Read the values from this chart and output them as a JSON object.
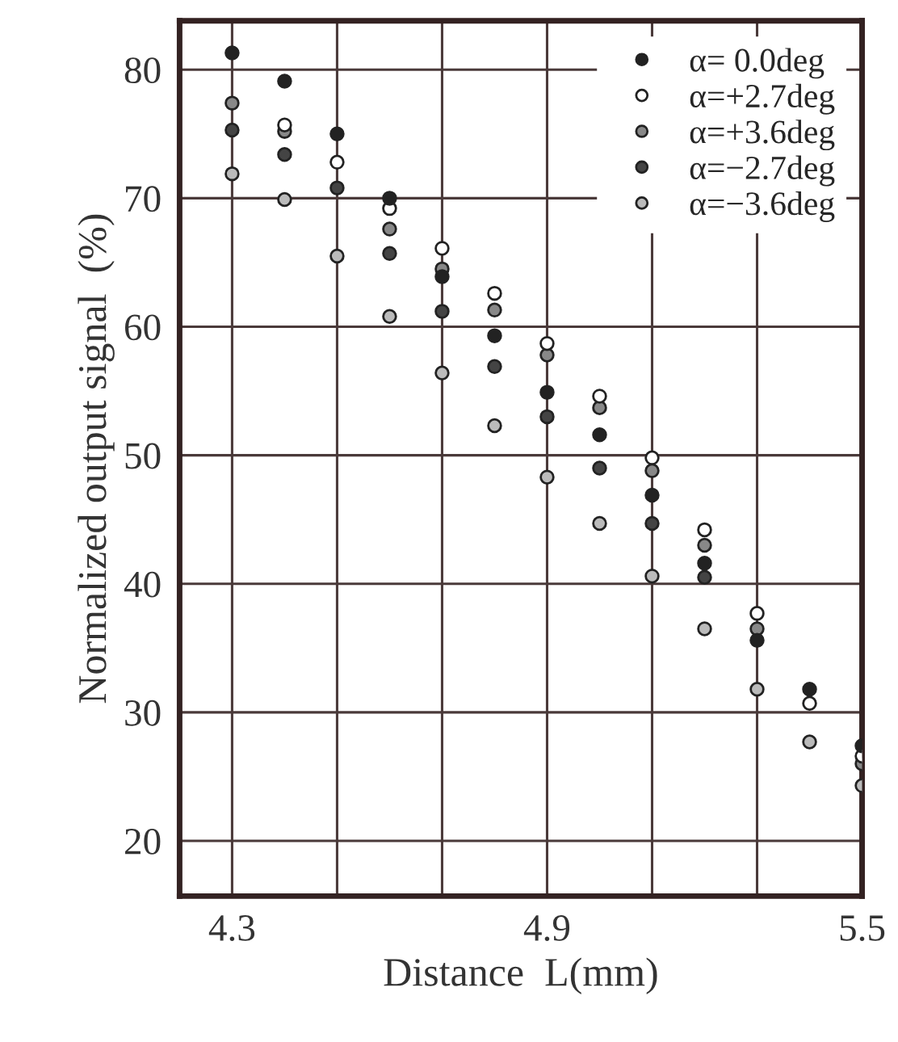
{
  "chart_data": {
    "type": "scatter",
    "xlabel": "Distance  L(mm)",
    "ylabel": "Normalized output signal  (%)",
    "x": [
      4.3,
      4.4,
      4.5,
      4.6,
      4.7,
      4.8,
      4.9,
      5.0,
      5.1,
      5.2,
      5.3,
      5.4,
      5.5
    ],
    "series": [
      {
        "name": "α= 0.0deg",
        "color": "#222222",
        "values": [
          81.3,
          79.1,
          75.0,
          70.0,
          63.9,
          59.3,
          54.9,
          51.6,
          46.9,
          41.6,
          35.6,
          31.8,
          27.4
        ]
      },
      {
        "name": "α=+2.7deg",
        "color": "#ffffff",
        "values": [
          null,
          75.7,
          72.8,
          69.2,
          66.1,
          62.6,
          58.7,
          54.6,
          49.8,
          44.2,
          37.7,
          30.7,
          26.6
        ]
      },
      {
        "name": "α=+3.6deg",
        "color": "#888888",
        "values": [
          77.4,
          75.2,
          null,
          67.6,
          64.5,
          61.3,
          57.8,
          53.7,
          48.8,
          43.0,
          36.5,
          null,
          26.0
        ]
      },
      {
        "name": "α=−2.7deg",
        "color": "#444444",
        "values": [
          75.3,
          73.4,
          70.8,
          65.7,
          61.2,
          56.9,
          53.0,
          49.0,
          44.7,
          40.5,
          null,
          null,
          null
        ]
      },
      {
        "name": "α=−3.6deg",
        "color": "#bbbbbb",
        "values": [
          71.9,
          69.9,
          65.5,
          60.8,
          56.4,
          52.3,
          48.3,
          44.7,
          40.6,
          36.5,
          31.8,
          27.7,
          24.3
        ]
      }
    ],
    "xlim": [
      4.2,
      5.5
    ],
    "ylim": [
      15.7,
      83.8
    ],
    "xticks": [
      4.3,
      {
        "value": 4.5,
        "label": null
      },
      {
        "value": 4.7,
        "label": null
      },
      4.9,
      {
        "value": 5.1,
        "label": null
      },
      {
        "value": 5.3,
        "label": null
      },
      5.5
    ],
    "yticks": [
      20,
      30,
      40,
      50,
      60,
      70,
      80
    ],
    "grid": true,
    "legend": "top right",
    "marker": "circle"
  }
}
